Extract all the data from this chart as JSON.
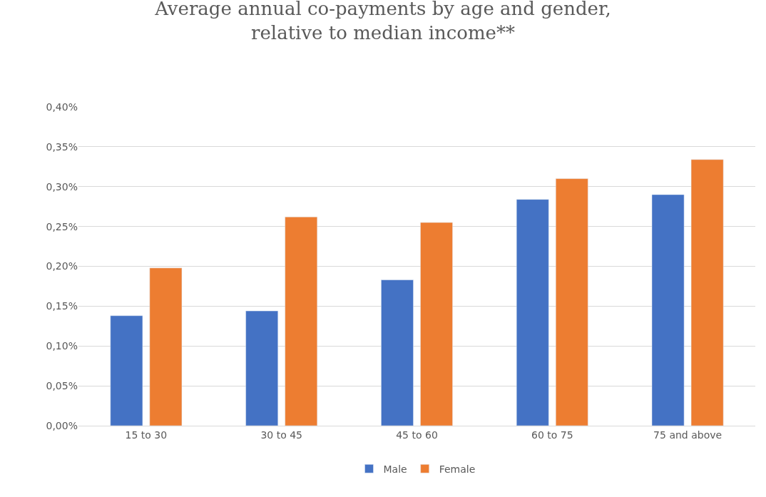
{
  "chart_data": {
    "type": "bar",
    "title": "Average annual co-payments by age and gender,\nrelative to median income**",
    "categories": [
      "15 to 30",
      "30 to 45",
      "45 to 60",
      "60 to 75",
      "75 and above"
    ],
    "series": [
      {
        "name": "Male",
        "color": "#4472c4",
        "values": [
          0.138,
          0.144,
          0.183,
          0.284,
          0.29
        ]
      },
      {
        "name": "Female",
        "color": "#ed7d31",
        "values": [
          0.198,
          0.262,
          0.255,
          0.31,
          0.334
        ]
      }
    ],
    "ylim": [
      0,
      0.4
    ],
    "yticks": [
      {
        "value": 0,
        "label": "0,00%"
      },
      {
        "value": 0.05,
        "label": "0,05%"
      },
      {
        "value": 0.1,
        "label": "0,10%"
      },
      {
        "value": 0.15,
        "label": "0,15%"
      },
      {
        "value": 0.2,
        "label": "0,20%"
      },
      {
        "value": 0.25,
        "label": "0,25%"
      },
      {
        "value": 0.3,
        "label": "0,30%"
      },
      {
        "value": 0.35,
        "label": "0,35%"
      },
      {
        "value": 0.4,
        "label": "0,40%"
      }
    ],
    "grid": "y",
    "legend": "bottom"
  }
}
